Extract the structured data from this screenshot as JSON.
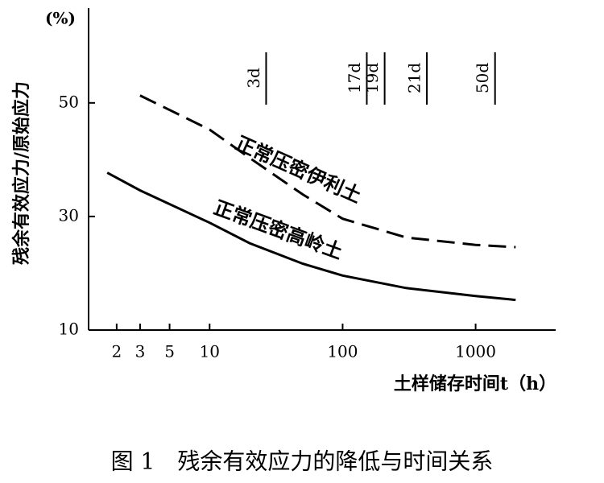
{
  "chart_data": {
    "type": "line",
    "y_unit_label": "(%)",
    "y_label": "残余有效应力/原始应力",
    "x_label": "土样储存时间t（h）",
    "caption": "图 1　残余有效应力的降低与时间关系",
    "x_scale": "log",
    "xlim": [
      1.23,
      4000
    ],
    "ylim": [
      10,
      66.7
    ],
    "xticks": [
      2,
      3,
      5,
      10,
      100,
      1000
    ],
    "yticks": [
      10,
      30,
      50
    ],
    "series": [
      {
        "name": "正常压密伊利土",
        "color": "#000000",
        "dash": "dashed",
        "x": [
          3,
          10,
          20,
          50,
          100,
          300,
          1000,
          2000
        ],
        "values": [
          51.3,
          45.3,
          40.3,
          33.9,
          29.6,
          26.3,
          25,
          24.6
        ]
      },
      {
        "name": "正常压密高岭土",
        "color": "#000000",
        "dash": "solid",
        "x": [
          1.7,
          3,
          10,
          20,
          50,
          100,
          300,
          1000,
          2000
        ],
        "values": [
          37.7,
          34.6,
          28.9,
          25.3,
          21.7,
          19.6,
          17.4,
          16,
          15.3
        ]
      }
    ],
    "annotations": [
      {
        "label": "3d",
        "x": 26.6
      },
      {
        "label": "17d",
        "x": 152
      },
      {
        "label": "19d",
        "x": 207
      },
      {
        "label": "21d",
        "x": 430
      },
      {
        "label": "50d",
        "x": 1400
      }
    ]
  }
}
